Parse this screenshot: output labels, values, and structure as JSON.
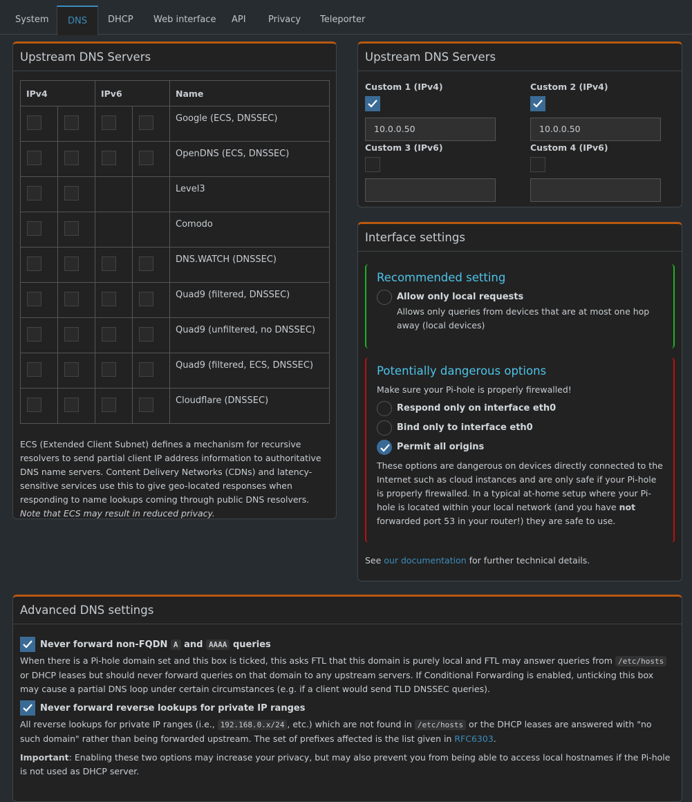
{
  "tabs": [
    "System",
    "DNS",
    "DHCP",
    "Web interface",
    "API",
    "Privacy",
    "Teleporter"
  ],
  "upstream": {
    "title": "Upstream DNS Servers",
    "headers": [
      "IPv4",
      "IPv6",
      "Name"
    ],
    "rows": [
      {
        "name": "Google (ECS, DNSSEC)",
        "ipv6": true
      },
      {
        "name": "OpenDNS (ECS, DNSSEC)",
        "ipv6": true
      },
      {
        "name": "Level3",
        "ipv6": false
      },
      {
        "name": "Comodo",
        "ipv6": false
      },
      {
        "name": "DNS.WATCH (DNSSEC)",
        "ipv6": true
      },
      {
        "name": "Quad9 (filtered, DNSSEC)",
        "ipv6": true
      },
      {
        "name": "Quad9 (unfiltered, no DNSSEC)",
        "ipv6": true
      },
      {
        "name": "Quad9 (filtered, ECS, DNSSEC)",
        "ipv6": true
      },
      {
        "name": "Cloudflare (DNSSEC)",
        "ipv6": true
      }
    ],
    "note": "ECS (Extended Client Subnet) defines a mechanism for recursive resolvers to send partial client IP address information to authoritative DNS name servers. Content Delivery Networks (CDNs) and latency-sensitive services use this to give geo-located responses when responding to name lookups coming through public DNS resolvers. ",
    "note_em": "Note that ECS may result in reduced privacy."
  },
  "custom": {
    "title": "Upstream DNS Servers",
    "servers": [
      {
        "label": "Custom 1 (IPv4)",
        "checked": true,
        "value": "10.0.0.50"
      },
      {
        "label": "Custom 2 (IPv4)",
        "checked": true,
        "value": "10.0.0.50"
      },
      {
        "label": "Custom 3 (IPv6)",
        "checked": false
      },
      {
        "label": "Custom 4 (IPv6)",
        "checked": false
      }
    ]
  },
  "interface": {
    "title": "Interface settings",
    "recommended": {
      "heading": "Recommended setting",
      "label": "Allow only local requests",
      "desc": "Allows only queries from devices that are at most one hop away (local devices)"
    },
    "dangerous": {
      "heading": "Potentially dangerous options",
      "intro": "Make sure your Pi-hole is properly firewalled!",
      "options": [
        {
          "label": "Respond only on interface eth0",
          "checked": false
        },
        {
          "label": "Bind only to interface eth0",
          "checked": false
        },
        {
          "label": "Permit all origins",
          "checked": true
        }
      ],
      "note": "These options are dangerous on devices directly connected to the Internet such as cloud instances and are only safe if your Pi-hole is properly firewalled. In a typical at-home setup where your Pi-hole is located within your local network (and you have ",
      "note_bold": "not",
      "note_end": " forwarded port 53 in your router!) they are safe to use."
    },
    "footer": "See ",
    "footer_link": "our documentation",
    "footer_end": " for further technical details."
  },
  "advanced": {
    "title": "Advanced DNS settings",
    "fqdn": {
      "label": [
        "Never forward non-FQDN ",
        "A",
        " and ",
        "AAAA",
        " queries"
      ],
      "desc": [
        "When there is a Pi-hole domain set and this box is ticked, this asks FTL that this domain is purely local and FTL may answer queries from ",
        "/etc/hosts",
        " or DHCP leases but should never forward queries on that domain to any upstream servers. If Conditional Forwarding is enabled, unticking this box may cause a partial DNS loop under certain circumstances (e.g. if a client would send TLD DNSSEC queries)."
      ]
    },
    "reverse": {
      "label": "Never forward reverse lookups for private IP ranges",
      "desc": [
        "All reverse lookups for private IP ranges (i.e., ",
        "192.168.0.x/24",
        ", etc.) which are not found in ",
        "/etc/hosts",
        " or the DHCP leases are answered with \"no such domain\" rather than being forwarded upstream. The set of prefixes affected is the list given in ",
        "RFC6303",
        "."
      ]
    },
    "important": "Important",
    "important_text": ": Enabling these two options may increase your privacy, but may also prevent you from being able to access local hostnames if the Pi-hole is not used as DHCP server."
  }
}
